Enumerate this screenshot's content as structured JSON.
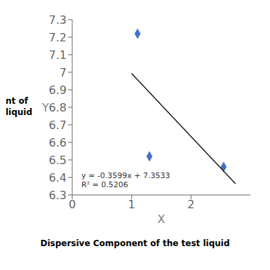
{
  "chart_data": {
    "type": "scatter",
    "x_label": "X",
    "y_label": "Y",
    "annotations": [
      "y = -0.3599x + 7.3533",
      "R² = 0.5206",
      "nt of",
      "liquid",
      "Dispersive Component of the test liquid"
    ],
    "series": [
      {
        "type": "scatter",
        "color": "#4472C4",
        "marker": "diamond",
        "x": [
          1.1,
          1.3,
          2.55
        ],
        "values": [
          7.22,
          6.52,
          6.46
        ]
      },
      {
        "type": "line",
        "color": "#1a1a1a",
        "x": [
          1.0,
          2.75
        ],
        "values": [
          6.9934,
          6.363575
        ]
      }
    ],
    "xlim": [
      0,
      3
    ],
    "ylim": [
      6.3,
      7.3
    ],
    "xticks": [
      0,
      1,
      2
    ],
    "yticks": [
      6.3,
      6.4,
      6.5,
      6.6,
      6.7,
      6.8,
      6.9,
      7,
      7.1,
      7.2,
      7.3
    ],
    "grid": false
  }
}
